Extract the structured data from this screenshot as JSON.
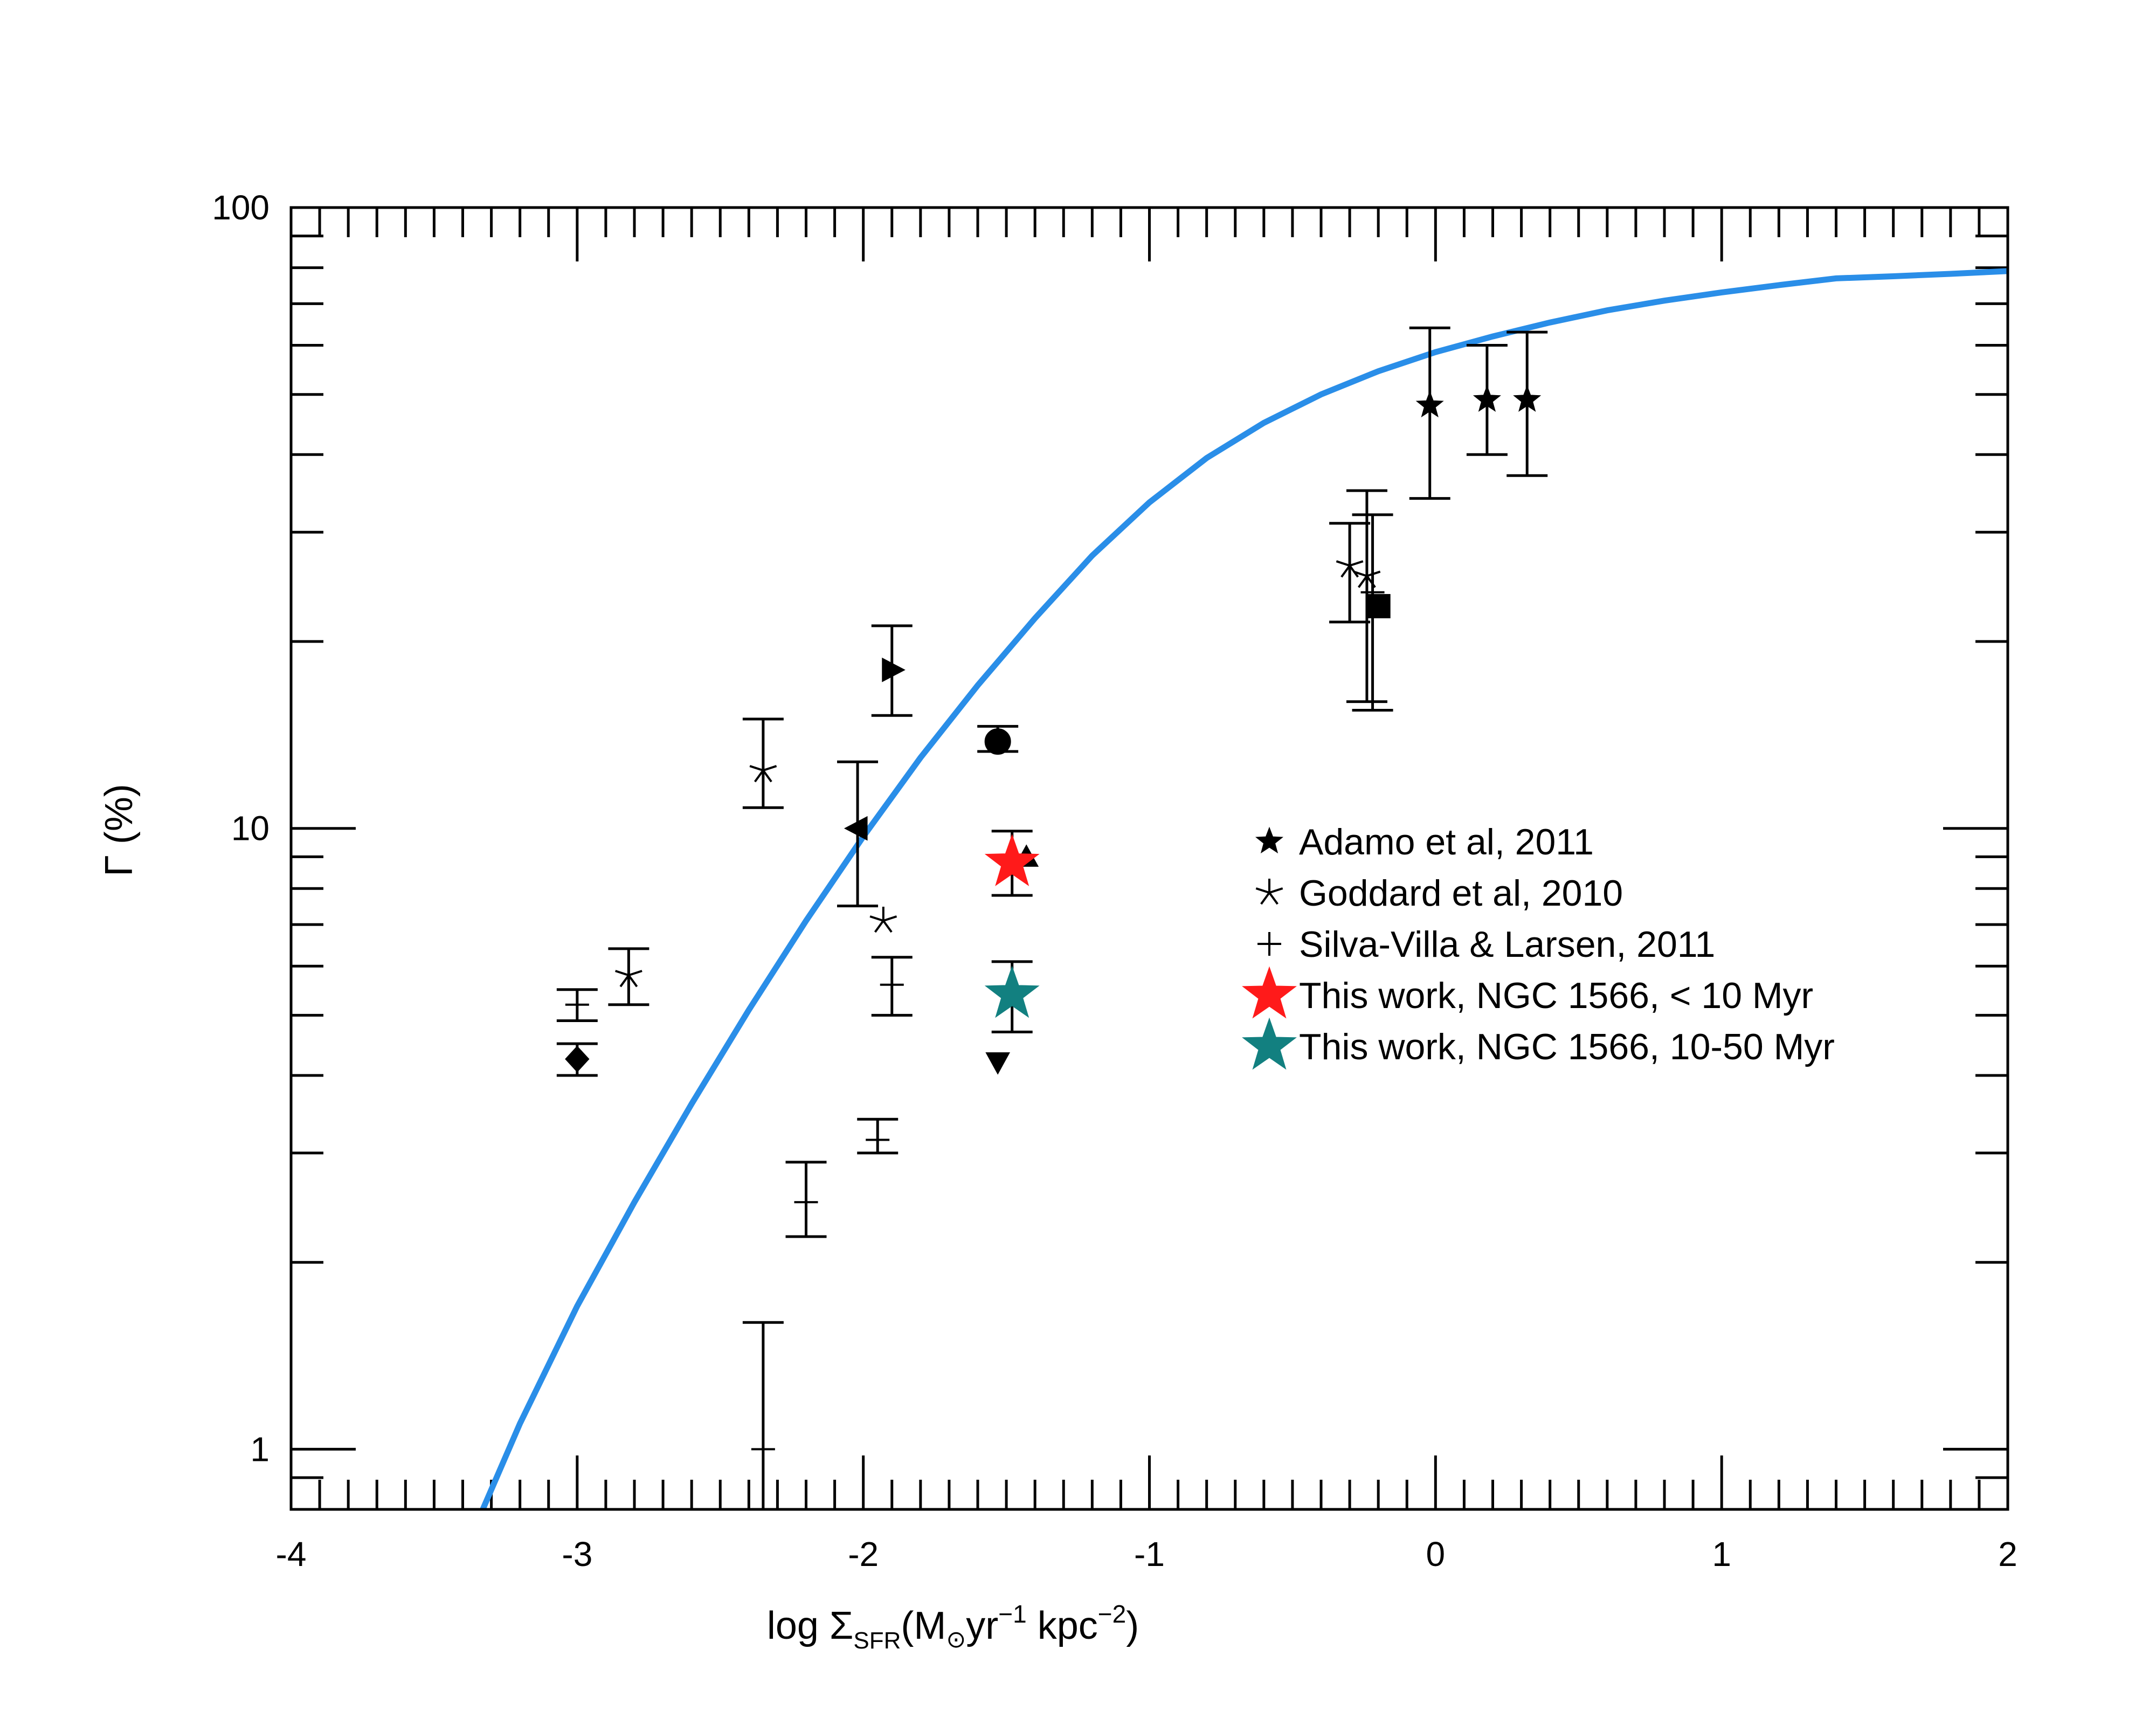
{
  "chart_data": {
    "type": "scatter",
    "title": "",
    "xlabel": {
      "prefix": "log Σ",
      "sub": "SFR",
      "units_a": "(M",
      "units_b": "yr",
      "sup1": "−1",
      "units_c": " kpc",
      "sup2": "−2",
      "units_d": ")"
    },
    "ylabel": "Γ (%)",
    "xlim": [
      -4,
      2
    ],
    "ylim": [
      0.8,
      100
    ],
    "yscale": "log",
    "x_ticks": [
      -4,
      -3,
      -2,
      -1,
      0,
      1,
      2
    ],
    "x_tick_labels": [
      "-4",
      "-3",
      "-2",
      "-1",
      "0",
      "1",
      "2"
    ],
    "y_ticks": [
      1,
      10,
      100
    ],
    "y_tick_labels": [
      "1",
      "10",
      "100"
    ],
    "model_curve": {
      "color": "#2a8ee8",
      "x": [
        -3.33,
        -3.2,
        -3.0,
        -2.8,
        -2.6,
        -2.4,
        -2.2,
        -2.0,
        -1.8,
        -1.6,
        -1.4,
        -1.2,
        -1.0,
        -0.8,
        -0.6,
        -0.4,
        -0.2,
        0.0,
        0.2,
        0.4,
        0.6,
        0.8,
        1.0,
        1.2,
        1.4,
        1.6,
        1.8,
        2.0
      ],
      "y": [
        0.8,
        1.1,
        1.7,
        2.5,
        3.6,
        5.1,
        7.1,
        9.7,
        13.0,
        17.0,
        21.8,
        27.5,
        33.5,
        39.5,
        45.0,
        50.0,
        54.5,
        58.5,
        62.0,
        65.3,
        68.3,
        70.8,
        73.0,
        75.0,
        76.9,
        77.5,
        78.2,
        79.0
      ]
    },
    "series": [
      {
        "name": "Adamo et al, 2011",
        "marker": "star-filled",
        "color": "#000000",
        "points": [
          {
            "x": -0.02,
            "y": 48,
            "ylo": 34,
            "yhi": 64
          },
          {
            "x": 0.18,
            "y": 49,
            "ylo": 40,
            "yhi": 60
          },
          {
            "x": 0.32,
            "y": 49,
            "ylo": 37,
            "yhi": 63
          }
        ]
      },
      {
        "name": "Goddard et al, 2010",
        "marker": "asterisk",
        "color": "#000000",
        "points": [
          {
            "x": -2.82,
            "y": 5.8,
            "ylo": 5.2,
            "yhi": 6.4
          },
          {
            "x": -2.35,
            "y": 12.4,
            "ylo": 10.8,
            "yhi": 15.0
          },
          {
            "x": -1.93,
            "y": 7.1
          },
          {
            "x": -0.3,
            "y": 26.5,
            "ylo": 21.5,
            "yhi": 31.0
          },
          {
            "x": -0.24,
            "y": 25.5,
            "ylo": 16.0,
            "yhi": 35.0
          }
        ]
      },
      {
        "name": "Silva-Villa & Larsen, 2011",
        "marker": "plus",
        "color": "#000000",
        "points": [
          {
            "x": -3.0,
            "y": 5.2,
            "ylo": 4.9,
            "yhi": 5.5
          },
          {
            "x": -2.35,
            "y": 1.0,
            "ylo": 0.8,
            "yhi": 1.6
          },
          {
            "x": -2.2,
            "y": 2.5,
            "ylo": 2.2,
            "yhi": 2.9
          },
          {
            "x": -1.95,
            "y": 3.15,
            "ylo": 3.0,
            "yhi": 3.4
          },
          {
            "x": -1.9,
            "y": 5.6,
            "ylo": 5.0,
            "yhi": 6.2
          },
          {
            "x": -0.22,
            "y": 24,
            "ylo": 15.5,
            "yhi": 32
          }
        ]
      },
      {
        "name": "This work, NGC 1566, < 10 Myr",
        "marker": "star-big",
        "color": "#ff1a1a",
        "points": [
          {
            "x": -1.48,
            "y": 8.8,
            "ylo": 7.8,
            "yhi": 9.9
          }
        ]
      },
      {
        "name": "This work, NGC 1566, 10-50 Myr",
        "marker": "star-big",
        "color": "#128080",
        "points": [
          {
            "x": -1.48,
            "y": 5.4,
            "ylo": 4.7,
            "yhi": 6.1
          }
        ]
      }
    ],
    "other_points": [
      {
        "marker": "diamond",
        "x": -3.0,
        "y": 4.25,
        "ylo": 4.0,
        "yhi": 4.5
      },
      {
        "marker": "triangle-left",
        "x": -2.02,
        "y": 10.0,
        "ylo": 7.5,
        "yhi": 12.8
      },
      {
        "marker": "triangle-right",
        "x": -1.9,
        "y": 18.0,
        "ylo": 15.2,
        "yhi": 21.2
      },
      {
        "marker": "circle",
        "x": -1.53,
        "y": 13.8,
        "ylo": 13.3,
        "yhi": 14.6
      },
      {
        "marker": "triangle-up",
        "x": -1.43,
        "y": 9.0
      },
      {
        "marker": "triangle-down",
        "x": -1.53,
        "y": 4.2
      },
      {
        "marker": "square",
        "x": -0.2,
        "y": 22.8
      }
    ],
    "legend": {
      "position": "center-right",
      "entries": [
        {
          "label": "Adamo et al, 2011",
          "marker": "star-filled",
          "color": "#000000"
        },
        {
          "label": "Goddard et al, 2010",
          "marker": "asterisk",
          "color": "#000000"
        },
        {
          "label": "Silva-Villa & Larsen, 2011",
          "marker": "plus",
          "color": "#000000"
        },
        {
          "label": "This work, NGC 1566, < 10 Myr",
          "marker": "star-big",
          "color": "#ff1a1a"
        },
        {
          "label": "This work, NGC 1566, 10-50 Myr",
          "marker": "star-big",
          "color": "#128080"
        }
      ]
    }
  }
}
